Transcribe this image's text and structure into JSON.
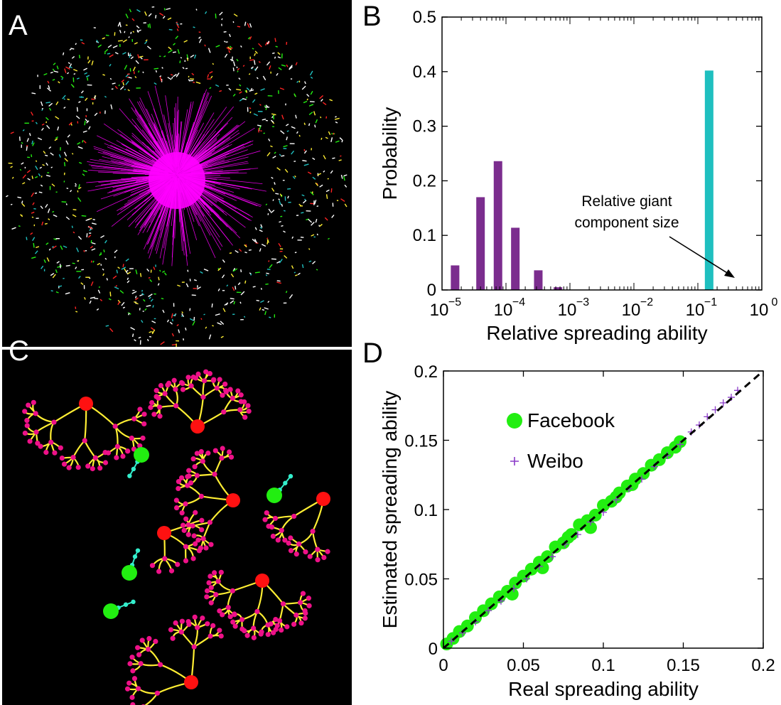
{
  "panels": {
    "a": {
      "letter": "A"
    },
    "b": {
      "letter": "B"
    },
    "c": {
      "letter": "C"
    },
    "d": {
      "letter": "D"
    }
  },
  "colors": {
    "purple": "#7b2d8e",
    "cyan": "#1fbfbf",
    "magenta": "#ff00ff",
    "green": "#22ee11",
    "red": "#ff1111",
    "yellow": "#ffee33",
    "pink": "#ee1188",
    "teal": "#33eecc"
  },
  "chart_data": [
    {
      "type": "bar",
      "panel": "B",
      "xscale": "log",
      "xlim": [
        1e-05,
        1
      ],
      "ylim": [
        0,
        0.5
      ],
      "xticks": [
        {
          "v": 1e-05,
          "label": "10",
          "exp": "−5"
        },
        {
          "v": 0.0001,
          "label": "10",
          "exp": "−4"
        },
        {
          "v": 0.001,
          "label": "10",
          "exp": "−3"
        },
        {
          "v": 0.01,
          "label": "10",
          "exp": "−2"
        },
        {
          "v": 0.1,
          "label": "10",
          "exp": "−1"
        },
        {
          "v": 1,
          "label": "10",
          "exp": "0"
        }
      ],
      "yticks": [
        "0",
        "0.1",
        "0.2",
        "0.3",
        "0.4",
        "0.5"
      ],
      "xlabel": "Relative spreading ability",
      "ylabel": "Probability",
      "bars": [
        {
          "x": 1.6e-05,
          "y": 0.045,
          "series": "purple"
        },
        {
          "x": 4e-05,
          "y": 0.17,
          "series": "purple"
        },
        {
          "x": 7.5e-05,
          "y": 0.236,
          "series": "purple"
        },
        {
          "x": 0.00014,
          "y": 0.114,
          "series": "purple"
        },
        {
          "x": 0.00032,
          "y": 0.036,
          "series": "purple"
        },
        {
          "x": 0.00065,
          "y": 0.005,
          "series": "purple"
        },
        {
          "x": 0.15,
          "y": 0.402,
          "series": "cyan"
        }
      ],
      "annotation": {
        "line1": "Relative giant",
        "line2": "component size"
      }
    },
    {
      "type": "scatter",
      "panel": "D",
      "xlim": [
        0,
        0.2
      ],
      "ylim": [
        0,
        0.2
      ],
      "xticks": [
        "0",
        "0.05",
        "0.1",
        "0.15",
        "0.2"
      ],
      "yticks": [
        "0",
        "0.05",
        "0.1",
        "0.15",
        "0.2"
      ],
      "xlabel": "Real spreading ability",
      "ylabel": "Estimated spreading ability",
      "legend": [
        "Facebook",
        "Weibo"
      ],
      "series": [
        {
          "name": "Facebook",
          "marker": "circle",
          "color": "#22ee11",
          "points": [
            [
              0.002,
              0.003
            ],
            [
              0.006,
              0.007
            ],
            [
              0.01,
              0.012
            ],
            [
              0.015,
              0.016
            ],
            [
              0.02,
              0.022
            ],
            [
              0.025,
              0.027
            ],
            [
              0.03,
              0.032
            ],
            [
              0.035,
              0.037
            ],
            [
              0.04,
              0.041
            ],
            [
              0.045,
              0.047
            ],
            [
              0.05,
              0.052
            ],
            [
              0.055,
              0.057
            ],
            [
              0.06,
              0.062
            ],
            [
              0.065,
              0.066
            ],
            [
              0.07,
              0.073
            ],
            [
              0.075,
              0.076
            ],
            [
              0.08,
              0.082
            ],
            [
              0.085,
              0.089
            ],
            [
              0.09,
              0.092
            ],
            [
              0.095,
              0.096
            ],
            [
              0.1,
              0.103
            ],
            [
              0.105,
              0.106
            ],
            [
              0.11,
              0.112
            ],
            [
              0.115,
              0.117
            ],
            [
              0.12,
              0.122
            ],
            [
              0.125,
              0.126
            ],
            [
              0.13,
              0.132
            ],
            [
              0.135,
              0.136
            ],
            [
              0.14,
              0.141
            ],
            [
              0.145,
              0.145
            ],
            [
              0.148,
              0.149
            ],
            [
              0.043,
              0.039
            ],
            [
              0.062,
              0.058
            ],
            [
              0.078,
              0.08
            ],
            [
              0.092,
              0.087
            ],
            [
              0.108,
              0.109
            ],
            [
              0.118,
              0.118
            ]
          ]
        },
        {
          "name": "Weibo",
          "marker": "plus",
          "color": "#8a3ac8",
          "points": [
            [
              0.005,
              0.005
            ],
            [
              0.012,
              0.011
            ],
            [
              0.02,
              0.019
            ],
            [
              0.028,
              0.027
            ],
            [
              0.036,
              0.034
            ],
            [
              0.044,
              0.043
            ],
            [
              0.052,
              0.05
            ],
            [
              0.06,
              0.059
            ],
            [
              0.068,
              0.066
            ],
            [
              0.076,
              0.075
            ],
            [
              0.084,
              0.082
            ],
            [
              0.092,
              0.091
            ],
            [
              0.1,
              0.098
            ],
            [
              0.108,
              0.107
            ],
            [
              0.116,
              0.115
            ],
            [
              0.124,
              0.122
            ],
            [
              0.132,
              0.131
            ],
            [
              0.14,
              0.139
            ],
            [
              0.148,
              0.147
            ],
            [
              0.155,
              0.156
            ],
            [
              0.16,
              0.161
            ],
            [
              0.165,
              0.167
            ],
            [
              0.17,
              0.172
            ],
            [
              0.175,
              0.177
            ],
            [
              0.18,
              0.181
            ],
            [
              0.184,
              0.186
            ]
          ]
        }
      ]
    }
  ]
}
